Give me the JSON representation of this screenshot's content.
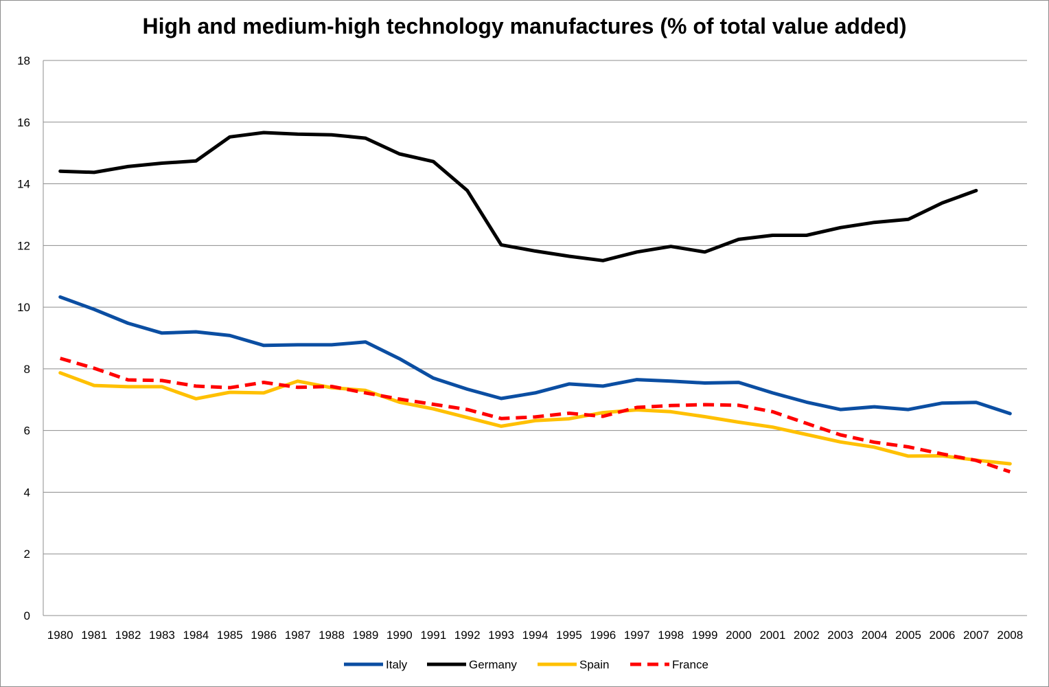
{
  "chart_data": {
    "type": "line",
    "title": "High and medium-high technology manufactures (% of total value added)",
    "xlabel": "",
    "ylabel": "",
    "ylim": [
      0,
      18
    ],
    "yticks": [
      0,
      2,
      4,
      6,
      8,
      10,
      12,
      14,
      16,
      18
    ],
    "grid": true,
    "legend_position": "bottom",
    "categories": [
      "1980",
      "1981",
      "1982",
      "1983",
      "1984",
      "1985",
      "1986",
      "1987",
      "1988",
      "1989",
      "1990",
      "1991",
      "1992",
      "1993",
      "1994",
      "1995",
      "1996",
      "1997",
      "1998",
      "1999",
      "2000",
      "2001",
      "2002",
      "2003",
      "2004",
      "2005",
      "2006",
      "2007",
      "2008"
    ],
    "series": [
      {
        "name": "Italy",
        "color": "#0b4ea2",
        "dash": false,
        "values": [
          10.33,
          9.93,
          9.48,
          9.16,
          9.2,
          9.08,
          8.76,
          8.78,
          8.78,
          8.87,
          8.33,
          7.7,
          7.34,
          7.04,
          7.22,
          7.51,
          7.44,
          7.65,
          7.6,
          7.54,
          7.56,
          7.22,
          6.92,
          6.68,
          6.77,
          6.68,
          6.89,
          6.91,
          6.55
        ]
      },
      {
        "name": "Germany",
        "color": "#000000",
        "dash": false,
        "values": [
          14.41,
          14.37,
          14.56,
          14.67,
          14.74,
          15.52,
          15.66,
          15.61,
          15.59,
          15.48,
          14.97,
          14.72,
          13.78,
          12.02,
          11.82,
          11.65,
          11.51,
          11.79,
          11.97,
          11.79,
          12.2,
          12.33,
          12.33,
          12.58,
          12.75,
          12.85,
          13.38,
          13.78,
          null
        ]
      },
      {
        "name": "Spain",
        "color": "#ffc000",
        "dash": false,
        "values": [
          7.87,
          7.46,
          7.42,
          7.42,
          7.03,
          7.24,
          7.22,
          7.6,
          7.39,
          7.3,
          6.92,
          6.7,
          6.42,
          6.14,
          6.32,
          6.38,
          6.58,
          6.67,
          6.61,
          6.45,
          6.27,
          6.11,
          5.87,
          5.63,
          5.46,
          5.17,
          5.18,
          5.04,
          4.92
        ]
      },
      {
        "name": "France",
        "color": "#ff0000",
        "dash": true,
        "values": [
          8.34,
          8.02,
          7.64,
          7.62,
          7.44,
          7.39,
          7.56,
          7.4,
          7.43,
          7.22,
          7.02,
          6.85,
          6.68,
          6.39,
          6.44,
          6.56,
          6.46,
          6.75,
          6.81,
          6.84,
          6.82,
          6.61,
          6.23,
          5.86,
          5.62,
          5.47,
          5.24,
          5.03,
          4.66
        ]
      }
    ]
  }
}
